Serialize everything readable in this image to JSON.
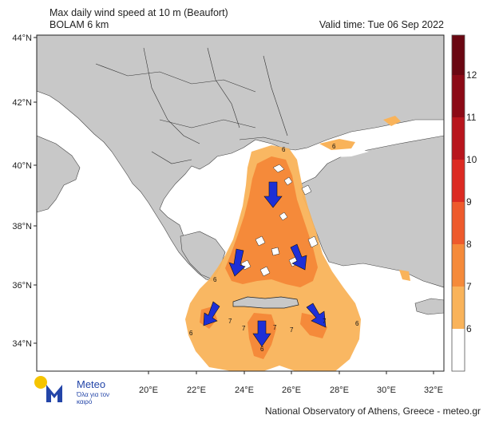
{
  "title": {
    "line1": "Max daily wind speed at 10 m (Beaufort)",
    "line2": "BOLAM 6 km"
  },
  "valid_time": "Valid time: Tue 06 Sep 2022",
  "axes": {
    "lat_labels": [
      "44°N",
      "42°N",
      "40°N",
      "38°N",
      "36°N",
      "34°N"
    ],
    "lon_labels": [
      "20°E",
      "22°E",
      "24°E",
      "26°E",
      "28°E",
      "30°E",
      "32°E"
    ]
  },
  "colorbar": {
    "labels": [
      "6",
      "7",
      "8",
      "9",
      "10",
      "11",
      "12"
    ],
    "colors": [
      "#ffffff",
      "#f9b35a",
      "#f58a3a",
      "#ee5a2c",
      "#dc2a22",
      "#b8151d",
      "#8c0a16",
      "#6a0712"
    ]
  },
  "contour_labels": [
    "6",
    "6",
    "6",
    "6",
    "7",
    "7",
    "7",
    "7",
    "7",
    "6",
    "6"
  ],
  "logo": {
    "name": "Meteo",
    "tagline": "Όλα για τον καιρό"
  },
  "footer": "National Observatory of Athens, Greece - meteo.gr",
  "colors": {
    "land": "#c8c8c8",
    "sea": "#ffffff",
    "wind_7": "#f9b35a",
    "wind_8": "#f58a3a",
    "arrow": "#1e2fd6"
  }
}
